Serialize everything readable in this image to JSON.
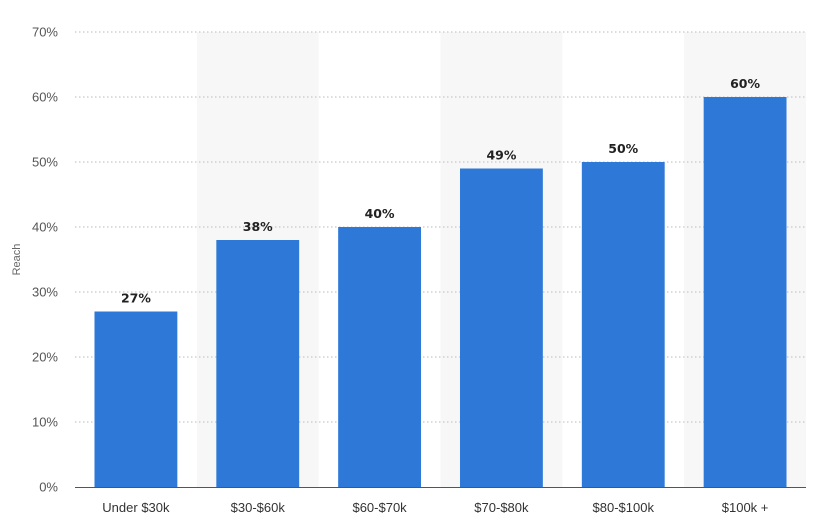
{
  "chart_data": {
    "type": "bar",
    "categories": [
      "Under $30k",
      "$30-$60k",
      "$60-$70k",
      "$70-$80k",
      "$80-$100k",
      "$100k +"
    ],
    "values": [
      27,
      38,
      40,
      49,
      50,
      60
    ],
    "value_labels": [
      "27%",
      "38%",
      "40%",
      "49%",
      "50%",
      "60%"
    ],
    "ylabel": "Reach",
    "ylim": [
      0,
      70
    ],
    "yticks": [
      0,
      10,
      20,
      30,
      40,
      50,
      60,
      70
    ],
    "ytick_labels": [
      "0%",
      "10%",
      "20%",
      "30%",
      "40%",
      "50%",
      "60%",
      "70%"
    ],
    "grid": true,
    "alternating_bands": true,
    "bar_color": "#2e78d8",
    "band_color": "#f7f7f8"
  }
}
